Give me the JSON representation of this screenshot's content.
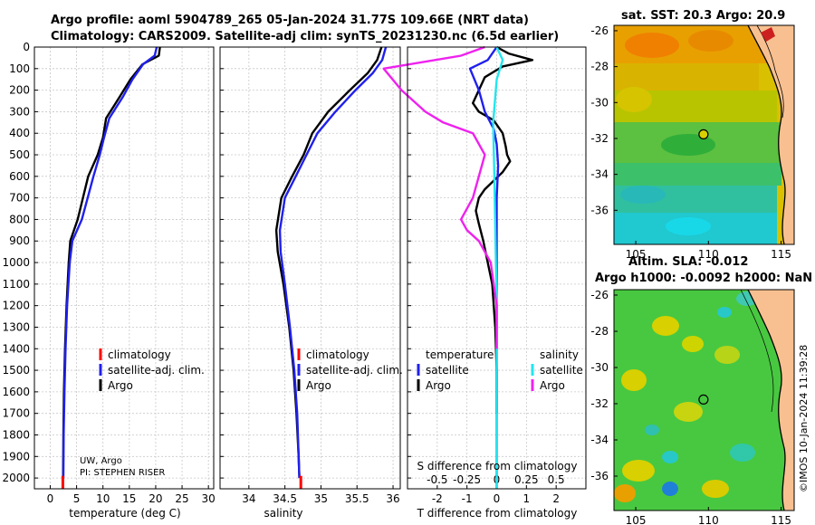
{
  "header": {
    "title_line1": "Argo profile: aoml 5904789_265 05-Jan-2024 31.77S 109.66E (NRT data)",
    "title_line2": "Climatology: CARS2009. Satellite-adj clim: synTS_20231230.nc (6.5d earlier)"
  },
  "sst_map": {
    "title": "sat. SST: 20.3 Argo: 20.9"
  },
  "sla_map": {
    "title_line1": "Altim. SLA: -0.012",
    "title_line2": "Argo h1000: -0.0092 h2000: NaN"
  },
  "copyright": "©IMOS 10-Jan-2024 11:39:28",
  "credits": {
    "line1": "UW, Argo",
    "line2": "PI: STEPHEN RISER"
  },
  "colors": {
    "argo": "#000000",
    "climatology": "#ff0000",
    "satellite": "#2020ee",
    "diff_temp_sat": "#2020ee",
    "diff_sal_sat": "#22e6ee",
    "diff_sal_argo": "#ee22ee"
  },
  "chart_data": [
    {
      "type": "line",
      "title": "",
      "xlabel": "temperature (deg C)",
      "ylabel": "",
      "xlim": [
        -3,
        31
      ],
      "ylim": [
        2050,
        0
      ],
      "xticks": [
        0,
        5,
        10,
        15,
        20,
        25,
        30
      ],
      "xtick_labels": [
        "0",
        "5",
        "10",
        "15",
        "20",
        "25",
        "30"
      ],
      "yticks": [
        0,
        100,
        200,
        300,
        400,
        500,
        600,
        700,
        800,
        900,
        1000,
        1100,
        1200,
        1300,
        1400,
        1500,
        1600,
        1700,
        1800,
        1900,
        2000
      ],
      "ytick_labels": [
        "0",
        "100",
        "200",
        "300",
        "400",
        "500",
        "600",
        "700",
        "800",
        "900",
        "1000",
        "1100",
        "1200",
        "1300",
        "1400",
        "1500",
        "1600",
        "1700",
        "1800",
        "1900",
        "2000"
      ],
      "grid": true,
      "legend": [
        "climatology",
        "satellite-adj. clim.",
        "Argo"
      ],
      "series": [
        {
          "name": "Argo",
          "color": "#000000",
          "x": [
            20.8,
            20.6,
            17.5,
            15.2,
            13.2,
            10.6,
            10.0,
            9.0,
            7.2,
            5.2,
            3.8,
            3.5,
            3.1,
            2.8,
            2.6,
            2.5,
            2.45
          ],
          "depth": [
            0,
            40,
            80,
            150,
            230,
            330,
            420,
            500,
            600,
            800,
            900,
            1000,
            1200,
            1400,
            1600,
            1800,
            2000
          ]
        },
        {
          "name": "satellite-adj. clim.",
          "color": "#2020ee",
          "x": [
            20.2,
            19.8,
            17.6,
            15.6,
            13.8,
            11.2,
            10.2,
            9.4,
            8.2,
            6.0,
            4.2,
            3.7,
            3.2,
            2.9,
            2.7,
            2.55,
            2.5
          ],
          "depth": [
            0,
            40,
            80,
            150,
            230,
            330,
            420,
            500,
            600,
            800,
            900,
            1000,
            1200,
            1400,
            1600,
            1800,
            2000
          ]
        },
        {
          "name": "climatology",
          "color": "#ff0000",
          "x": [
            2.4,
            2.4
          ],
          "depth": [
            1990,
            2050
          ]
        }
      ]
    },
    {
      "type": "line",
      "title": "",
      "xlabel": "salinity",
      "ylabel": "",
      "xlim": [
        33.6,
        36.1
      ],
      "ylim": [
        2050,
        0
      ],
      "xticks": [
        34,
        34.5,
        35,
        35.5,
        36
      ],
      "xtick_labels": [
        "34",
        "34.5",
        "35",
        "35.5",
        "36"
      ],
      "grid": true,
      "legend": [
        "climatology",
        "satellite-adj. clim.",
        "Argo"
      ],
      "series": [
        {
          "name": "Argo",
          "color": "#000000",
          "x": [
            35.84,
            35.78,
            35.65,
            35.4,
            35.1,
            34.88,
            34.76,
            34.6,
            34.45,
            34.38,
            34.4,
            34.48,
            34.56,
            34.62,
            34.66,
            34.69,
            34.7
          ],
          "depth": [
            0,
            60,
            120,
            200,
            300,
            400,
            500,
            600,
            700,
            850,
            950,
            1100,
            1300,
            1500,
            1700,
            1900,
            2000
          ]
        },
        {
          "name": "satellite-adj. clim.",
          "color": "#2020ee",
          "x": [
            35.9,
            35.85,
            35.72,
            35.48,
            35.2,
            34.95,
            34.8,
            34.65,
            34.5,
            34.43,
            34.44,
            34.5,
            34.57,
            34.63,
            34.67,
            34.69,
            34.7
          ],
          "depth": [
            0,
            60,
            120,
            200,
            300,
            400,
            500,
            600,
            700,
            850,
            950,
            1100,
            1300,
            1500,
            1700,
            1900,
            2000
          ]
        },
        {
          "name": "climatology",
          "color": "#ff0000",
          "x": [
            34.72,
            34.72
          ],
          "depth": [
            1990,
            2050
          ]
        }
      ]
    },
    {
      "type": "line",
      "title": "",
      "xlabel": "T difference from climatology",
      "xlabel_top": "S difference from climatology",
      "ylabel": "",
      "xlim": [
        -3,
        3
      ],
      "ylim": [
        2050,
        0
      ],
      "xticks": [
        -2,
        -1,
        0,
        1,
        2
      ],
      "xtick_labels": [
        "-2",
        "-1",
        "0",
        "1",
        "2"
      ],
      "sal_ticks": [
        -0.5,
        -0.25,
        0,
        0.25,
        0.5
      ],
      "sal_tick_labels": [
        "-0.5",
        "-0.25",
        "0",
        "0.25",
        "0.5"
      ],
      "grid": true,
      "legend_temperature": {
        "heading": "temperature",
        "items": [
          "satellite",
          "Argo"
        ]
      },
      "legend_salinity": {
        "heading": "salinity",
        "items": [
          "satellite",
          "Argo"
        ]
      },
      "series": [
        {
          "name": "temperature Argo",
          "color": "#000000",
          "x": [
            0,
            0.4,
            1.2,
            0.2,
            -0.4,
            -0.6,
            -0.8,
            -0.6,
            -0.1,
            0.2,
            0.3,
            0.35,
            0.45,
            0.2,
            -0.1,
            -0.4,
            -0.6,
            -0.7,
            -0.6,
            -0.45,
            -0.3,
            -0.15,
            -0.05,
            0,
            0
          ],
          "depth": [
            0,
            30,
            60,
            90,
            140,
            200,
            260,
            300,
            340,
            400,
            460,
            500,
            530,
            580,
            620,
            660,
            700,
            760,
            820,
            900,
            1000,
            1100,
            1300,
            1500,
            1700
          ]
        },
        {
          "name": "temperature satellite",
          "color": "#2020ee",
          "x": [
            0,
            -0.3,
            -0.9,
            -0.6,
            -0.4,
            -0.1,
            0,
            0.05,
            0,
            0,
            0,
            0
          ],
          "depth": [
            0,
            60,
            100,
            200,
            300,
            380,
            450,
            550,
            700,
            1000,
            1500,
            2050
          ]
        },
        {
          "name": "salinity satellite",
          "color": "#22e6ee",
          "x": [
            0,
            0.05,
            0.0,
            -0.03,
            -0.02,
            -0.01,
            0,
            0,
            0
          ],
          "depth": [
            0,
            60,
            150,
            350,
            600,
            900,
            1200,
            1600,
            2050
          ]
        },
        {
          "name": "salinity Argo",
          "color": "#ee22ee",
          "x": [
            -0.1,
            -0.3,
            -0.95,
            -0.8,
            -0.6,
            -0.45,
            -0.2,
            -0.1,
            -0.15,
            -0.2,
            -0.3,
            -0.25,
            -0.15,
            -0.05,
            0,
            0
          ],
          "depth": [
            0,
            40,
            100,
            200,
            300,
            350,
            400,
            500,
            600,
            700,
            800,
            850,
            900,
            1000,
            1200,
            1400
          ]
        }
      ]
    },
    {
      "type": "heatmap",
      "title": "sat. SST: 20.3 Argo: 20.9",
      "xticks": [
        105,
        110,
        115
      ],
      "xtick_labels": [
        "105",
        "110",
        "115"
      ],
      "yticks": [
        -26,
        -28,
        -30,
        -32,
        -34,
        -36
      ],
      "ytick_labels": [
        "-26",
        "-28",
        "-30",
        "-32",
        "-34",
        "-36"
      ],
      "xlim": [
        103.5,
        115.9
      ],
      "ylim": [
        -37.9,
        -25.7
      ],
      "argo_position": [
        109.66,
        -31.77
      ]
    },
    {
      "type": "heatmap",
      "title": "Altim. SLA: -0.012",
      "xticks": [
        105,
        110,
        115
      ],
      "xtick_labels": [
        "105",
        "110",
        "115"
      ],
      "yticks": [
        -26,
        -28,
        -30,
        -32,
        -34,
        -36
      ],
      "ytick_labels": [
        "-26",
        "-28",
        "-30",
        "-32",
        "-34",
        "-36"
      ],
      "xlim": [
        103.5,
        115.9
      ],
      "ylim": [
        -37.9,
        -25.7
      ],
      "argo_position": [
        109.66,
        -31.77
      ]
    }
  ]
}
